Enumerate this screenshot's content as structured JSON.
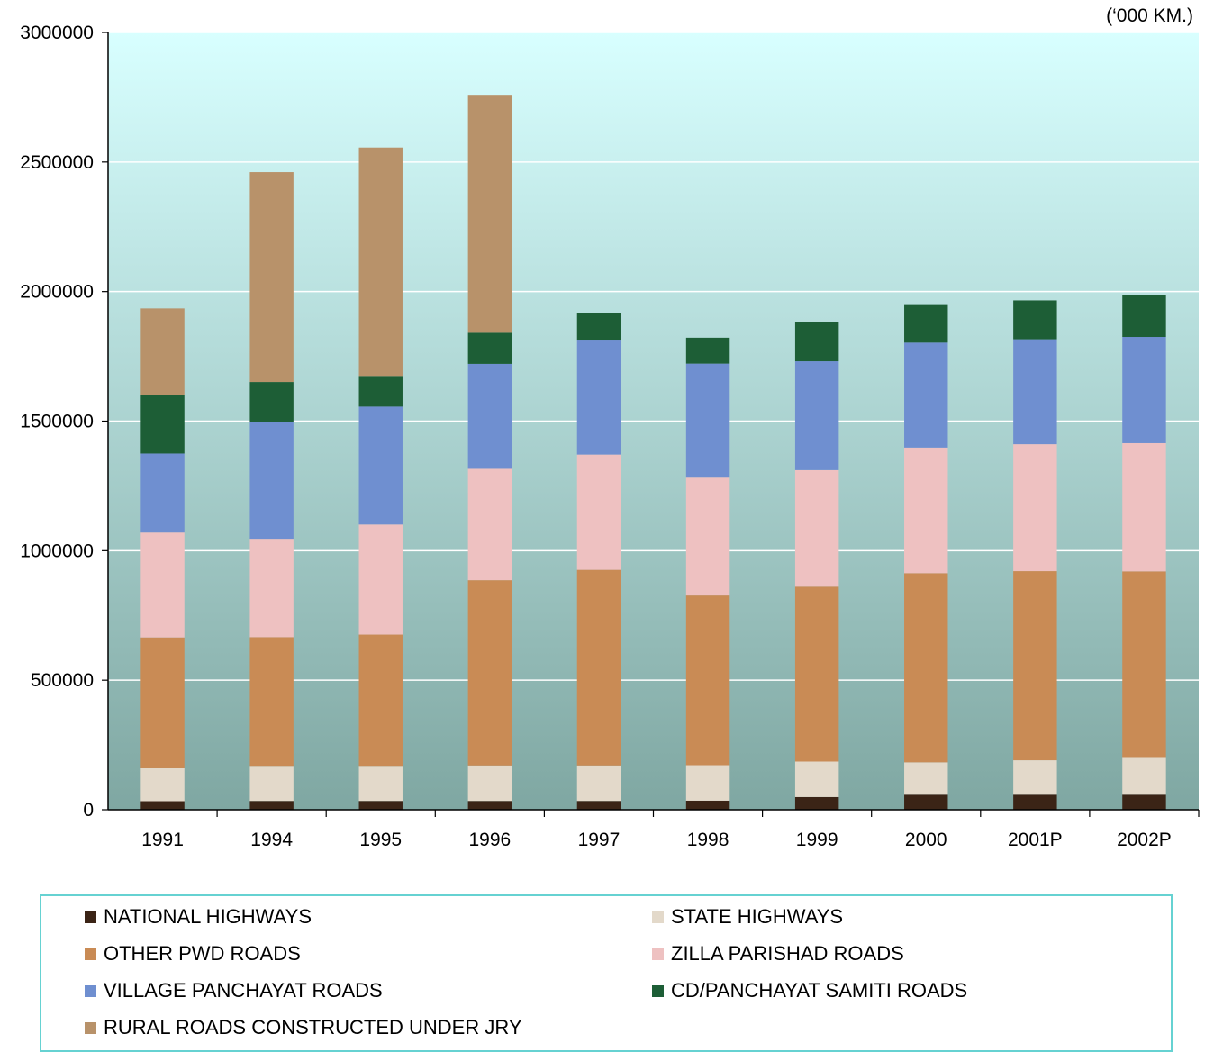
{
  "chart_data": {
    "type": "bar",
    "stacked": true,
    "unit_note": "(‘000 KM.)",
    "categories": [
      "1991",
      "1994",
      "1995",
      "1996",
      "1997",
      "1998",
      "1999",
      "2000",
      "2001P",
      "2002P"
    ],
    "ylim": [
      0,
      3000000
    ],
    "yticks": [
      0,
      500000,
      1000000,
      1500000,
      2000000,
      2500000,
      3000000
    ],
    "grid": true,
    "legend_position": "bottom",
    "series": [
      {
        "name": "NATIONAL HIGHWAYS",
        "color": "#3b2416",
        "values": [
          33000,
          34000,
          34000,
          34000,
          34000,
          35000,
          49000,
          58000,
          58000,
          58000
        ]
      },
      {
        "name": "STATE HIGHWAYS",
        "color": "#e3d9ca",
        "values": [
          127000,
          132000,
          132000,
          137000,
          137000,
          137000,
          137000,
          125000,
          133000,
          142000
        ]
      },
      {
        "name": "OTHER PWD ROADS",
        "color": "#c98b55",
        "values": [
          505000,
          500000,
          510000,
          715000,
          755000,
          655000,
          675000,
          730000,
          730000,
          720000
        ]
      },
      {
        "name": "ZILLA PARISHAD ROADS",
        "color": "#eec1c1",
        "values": [
          405000,
          380000,
          425000,
          430000,
          445000,
          455000,
          450000,
          485000,
          490000,
          495000
        ]
      },
      {
        "name": "VILLAGE PANCHAYAT ROADS",
        "color": "#6f8fd0",
        "values": [
          305000,
          450000,
          455000,
          405000,
          440000,
          440000,
          420000,
          405000,
          405000,
          410000
        ]
      },
      {
        "name": "CD/PANCHAYAT SAMITI ROADS",
        "color": "#1d5e36",
        "values": [
          225000,
          155000,
          115000,
          120000,
          105000,
          100000,
          150000,
          145000,
          150000,
          160000
        ]
      },
      {
        "name": "RURAL ROADS CONSTRUCTED UNDER JRY",
        "color": "#b8926a",
        "values": [
          335000,
          810000,
          885000,
          915000,
          0,
          0,
          0,
          0,
          0,
          0
        ]
      }
    ]
  }
}
